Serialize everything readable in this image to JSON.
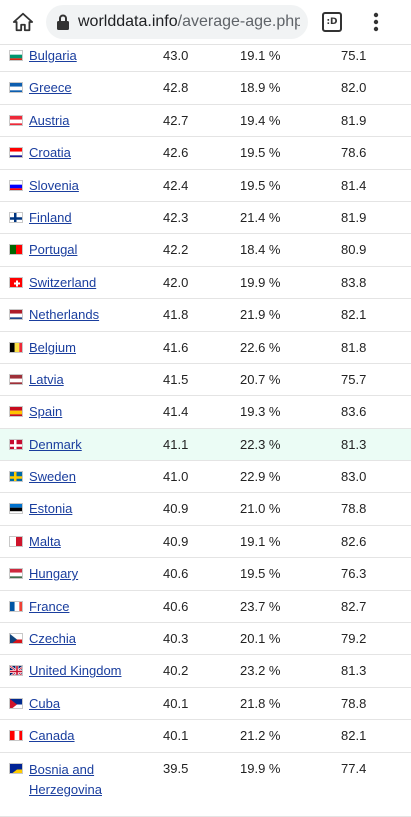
{
  "browser": {
    "url_host": "worlddata.info",
    "url_path": "/average-age.php",
    "tabs_label": ":D"
  },
  "rows": [
    {
      "country": "Bulgaria",
      "age": "43.0",
      "pct": "19.1 %",
      "life": "75.1",
      "flag": [
        "#ffffff",
        "#00966e",
        "#d62612"
      ],
      "dir": "h"
    },
    {
      "country": "Greece",
      "age": "42.8",
      "pct": "18.9 %",
      "life": "82.0",
      "flag": [
        "#0d5eaf",
        "#ffffff",
        "#0d5eaf"
      ],
      "dir": "h"
    },
    {
      "country": "Austria",
      "age": "42.7",
      "pct": "19.4 %",
      "life": "81.9",
      "flag": [
        "#ed2939",
        "#ffffff",
        "#ed2939"
      ],
      "dir": "h"
    },
    {
      "country": "Croatia",
      "age": "42.6",
      "pct": "19.5 %",
      "life": "78.6",
      "flag": [
        "#ff0000",
        "#ffffff",
        "#171796"
      ],
      "dir": "h"
    },
    {
      "country": "Slovenia",
      "age": "42.4",
      "pct": "19.5 %",
      "life": "81.4",
      "flag": [
        "#ffffff",
        "#0000ff",
        "#ff0000"
      ],
      "dir": "h"
    },
    {
      "country": "Finland",
      "age": "42.3",
      "pct": "21.4 %",
      "life": "81.9",
      "flag": [
        "#ffffff",
        "#003580",
        "#ffffff"
      ],
      "dir": "cross"
    },
    {
      "country": "Portugal",
      "age": "42.2",
      "pct": "18.4 %",
      "life": "80.9",
      "flag": [
        "#006600",
        "#ff0000",
        "#ff0000"
      ],
      "dir": "v2"
    },
    {
      "country": "Switzerland",
      "age": "42.0",
      "pct": "19.9 %",
      "life": "83.8",
      "flag": [
        "#ff0000",
        "#ffffff",
        "#ff0000"
      ],
      "dir": "swiss"
    },
    {
      "country": "Netherlands",
      "age": "41.8",
      "pct": "21.9 %",
      "life": "82.1",
      "flag": [
        "#ae1c28",
        "#ffffff",
        "#21468b"
      ],
      "dir": "h"
    },
    {
      "country": "Belgium",
      "age": "41.6",
      "pct": "22.6 %",
      "life": "81.8",
      "flag": [
        "#000000",
        "#fae042",
        "#ed2939"
      ],
      "dir": "v"
    },
    {
      "country": "Latvia",
      "age": "41.5",
      "pct": "20.7 %",
      "life": "75.7",
      "flag": [
        "#9e3039",
        "#ffffff",
        "#9e3039"
      ],
      "dir": "h"
    },
    {
      "country": "Spain",
      "age": "41.4",
      "pct": "19.3 %",
      "life": "83.6",
      "flag": [
        "#c60b1e",
        "#ffc400",
        "#c60b1e"
      ],
      "dir": "h"
    },
    {
      "country": "Denmark",
      "age": "41.1",
      "pct": "22.3 %",
      "life": "81.3",
      "flag": [
        "#c60c30",
        "#ffffff",
        "#c60c30"
      ],
      "dir": "cross",
      "highlight": true
    },
    {
      "country": "Sweden",
      "age": "41.0",
      "pct": "22.9 %",
      "life": "83.0",
      "flag": [
        "#006aa7",
        "#fecc00",
        "#006aa7"
      ],
      "dir": "cross"
    },
    {
      "country": "Estonia",
      "age": "40.9",
      "pct": "21.0 %",
      "life": "78.8",
      "flag": [
        "#0072ce",
        "#000000",
        "#ffffff"
      ],
      "dir": "h"
    },
    {
      "country": "Malta",
      "age": "40.9",
      "pct": "19.1 %",
      "life": "82.6",
      "flag": [
        "#ffffff",
        "#cf142b",
        "#cf142b"
      ],
      "dir": "v2"
    },
    {
      "country": "Hungary",
      "age": "40.6",
      "pct": "19.5 %",
      "life": "76.3",
      "flag": [
        "#cd2a3e",
        "#ffffff",
        "#436f4d"
      ],
      "dir": "h"
    },
    {
      "country": "France",
      "age": "40.6",
      "pct": "23.7 %",
      "life": "82.7",
      "flag": [
        "#0055a4",
        "#ffffff",
        "#ef4135"
      ],
      "dir": "v"
    },
    {
      "country": "Czechia",
      "age": "40.3",
      "pct": "20.1 %",
      "life": "79.2",
      "flag": [
        "#ffffff",
        "#d7141a",
        "#11457e"
      ],
      "dir": "tri"
    },
    {
      "country": "United Kingdom",
      "age": "40.2",
      "pct": "23.2 %",
      "life": "81.3",
      "flag": [
        "#012169",
        "#ffffff",
        "#c8102e"
      ],
      "dir": "uk"
    },
    {
      "country": "Cuba",
      "age": "40.1",
      "pct": "21.8 %",
      "life": "78.8",
      "flag": [
        "#002a8f",
        "#ffffff",
        "#cf142b"
      ],
      "dir": "tri"
    },
    {
      "country": "Canada",
      "age": "40.1",
      "pct": "21.2 %",
      "life": "82.1",
      "flag": [
        "#ff0000",
        "#ffffff",
        "#ff0000"
      ],
      "dir": "v"
    },
    {
      "country": "Bosnia and Herzegovina",
      "age": "39.5",
      "pct": "19.9 %",
      "life": "77.4",
      "flag": [
        "#002395",
        "#fecb00",
        "#002395"
      ],
      "dir": "tri",
      "tall": true
    }
  ]
}
